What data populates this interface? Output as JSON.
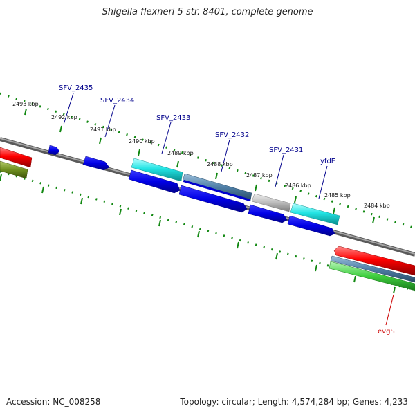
{
  "title": "Shigella flexneri 5 str. 8401, complete genome",
  "footer": {
    "accession": "Accession: NC_008258",
    "summary": "Topology: circular; Length: 4,574,284 bp; Genes: 4,233"
  },
  "colors": {
    "backbone": "#808080",
    "tick": "#118811",
    "label_blue": "#00008b",
    "label_red": "#cc0000",
    "blue": "#0000ee",
    "cyan": "#22dddd",
    "steel": "#4f7fa7",
    "gray": "#b8b8b8",
    "red": "#ee0000",
    "green": "#44cc44",
    "olive": "#6f8f1f"
  },
  "kbp_labels": [
    "2493 kbp",
    "2492 kbp",
    "2491 kbp",
    "2490 kbp",
    "2489 kbp",
    "2488 kbp",
    "2487 kbp",
    "2486 kbp",
    "2485 kbp",
    "2484 kbp"
  ],
  "gene_labels": [
    {
      "text": "SFV_2435",
      "color": "label_blue"
    },
    {
      "text": "SFV_2434",
      "color": "label_blue"
    },
    {
      "text": "SFV_2433",
      "color": "label_blue"
    },
    {
      "text": "SFV_2432",
      "color": "label_blue"
    },
    {
      "text": "SFV_2431",
      "color": "label_blue"
    },
    {
      "text": "yfdE",
      "color": "label_blue"
    },
    {
      "text": "evgS",
      "color": "label_red"
    }
  ]
}
